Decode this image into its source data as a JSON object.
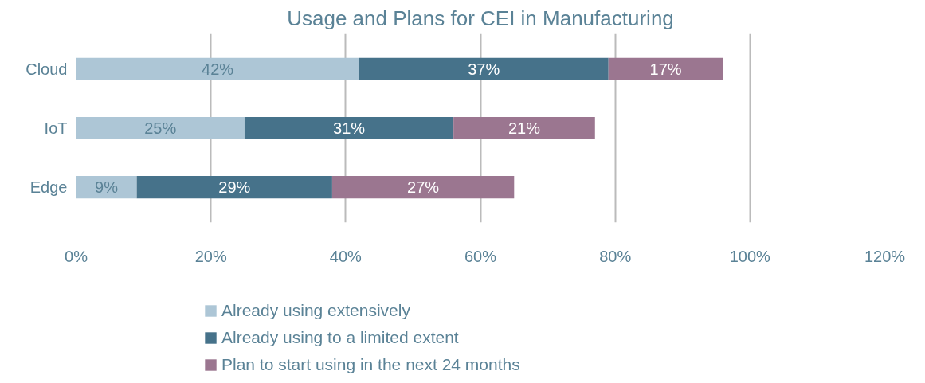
{
  "chart_data": {
    "type": "bar",
    "orientation": "horizontal",
    "stacked": true,
    "title": "Usage and Plans for CEI in Manufacturing",
    "categories": [
      "Cloud",
      "IoT",
      "Edge"
    ],
    "series": [
      {
        "name": "Already using extensively",
        "color": "#adc6d6",
        "values": [
          42,
          25,
          9
        ],
        "value_labels": [
          "42%",
          "25%",
          "9%"
        ]
      },
      {
        "name": "Already using to a limited extent",
        "color": "#46728a",
        "values": [
          37,
          31,
          29
        ],
        "value_labels": [
          "37%",
          "31%",
          "29%"
        ]
      },
      {
        "name": "Plan to start using in the next 24 months",
        "color": "#9b7690",
        "values": [
          17,
          21,
          27
        ],
        "value_labels": [
          "17%",
          "21%",
          "27%"
        ]
      }
    ],
    "xlim": [
      0,
      120
    ],
    "xticks": [
      {
        "value": 0,
        "label": "0%"
      },
      {
        "value": 20,
        "label": "20%"
      },
      {
        "value": 40,
        "label": "40%"
      },
      {
        "value": 60,
        "label": "60%"
      },
      {
        "value": 80,
        "label": "80%"
      },
      {
        "value": 100,
        "label": "100%"
      },
      {
        "value": 120,
        "label": "120%"
      }
    ],
    "grid": "x",
    "legend": "bottom"
  }
}
